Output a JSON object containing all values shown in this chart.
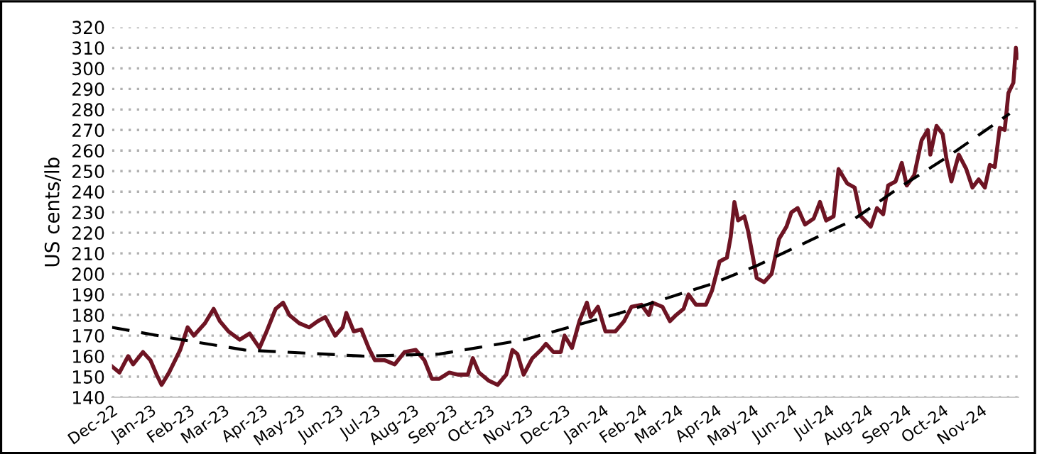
{
  "chart_data": {
    "type": "line",
    "ylabel": "US cents/lb",
    "ylim": [
      140,
      320
    ],
    "yticks": [
      140,
      150,
      160,
      170,
      180,
      190,
      200,
      210,
      220,
      230,
      240,
      250,
      260,
      270,
      280,
      290,
      300,
      310,
      320
    ],
    "xlim": [
      "2022-12-01",
      "2024-12-01"
    ],
    "xticks": [
      {
        "value": "2022-12-01",
        "label": "Dec-22"
      },
      {
        "value": "2023-01-01",
        "label": "Jan-23"
      },
      {
        "value": "2023-02-01",
        "label": "Feb-23"
      },
      {
        "value": "2023-03-01",
        "label": "Mar-23"
      },
      {
        "value": "2023-04-01",
        "label": "Apr-23"
      },
      {
        "value": "2023-05-01",
        "label": "May-23"
      },
      {
        "value": "2023-06-01",
        "label": "Jun-23"
      },
      {
        "value": "2023-07-01",
        "label": "Jul-23"
      },
      {
        "value": "2023-08-01",
        "label": "Aug-23"
      },
      {
        "value": "2023-09-01",
        "label": "Sep-23"
      },
      {
        "value": "2023-10-01",
        "label": "Oct-23"
      },
      {
        "value": "2023-11-01",
        "label": "Nov-23"
      },
      {
        "value": "2023-12-01",
        "label": "Dec-23"
      },
      {
        "value": "2024-01-01",
        "label": "Jan-24"
      },
      {
        "value": "2024-02-01",
        "label": "Feb-24"
      },
      {
        "value": "2024-03-01",
        "label": "Mar-24"
      },
      {
        "value": "2024-04-01",
        "label": "Apr-24"
      },
      {
        "value": "2024-05-01",
        "label": "May-24"
      },
      {
        "value": "2024-06-01",
        "label": "Jun-24"
      },
      {
        "value": "2024-07-01",
        "label": "Jul-24"
      },
      {
        "value": "2024-08-01",
        "label": "Aug-24"
      },
      {
        "value": "2024-09-01",
        "label": "Sep-24"
      },
      {
        "value": "2024-10-01",
        "label": "Oct-24"
      },
      {
        "value": "2024-11-01",
        "label": "Nov-24"
      }
    ],
    "grid": "y",
    "series": [
      {
        "color": "#6e1423",
        "line_style": "solid",
        "x": [
          "2022-12-01",
          "2022-12-07",
          "2022-12-14",
          "2022-12-18",
          "2022-12-26",
          "2023-01-01",
          "2023-01-06",
          "2023-01-10",
          "2023-01-16",
          "2023-01-25",
          "2023-01-31",
          "2023-02-05",
          "2023-02-14",
          "2023-02-21",
          "2023-02-26",
          "2023-03-05",
          "2023-03-14",
          "2023-03-22",
          "2023-03-30",
          "2023-04-04",
          "2023-04-12",
          "2023-04-18",
          "2023-04-23",
          "2023-05-01",
          "2023-05-09",
          "2023-05-16",
          "2023-05-22",
          "2023-05-30",
          "2023-06-05",
          "2023-06-08",
          "2023-06-14",
          "2023-06-20",
          "2023-06-26",
          "2023-07-01",
          "2023-07-09",
          "2023-07-17",
          "2023-07-25",
          "2023-08-03",
          "2023-08-10",
          "2023-08-16",
          "2023-08-22",
          "2023-08-30",
          "2023-09-06",
          "2023-09-14",
          "2023-09-18",
          "2023-09-23",
          "2023-10-01",
          "2023-10-08",
          "2023-10-15",
          "2023-10-20",
          "2023-10-24",
          "2023-10-29",
          "2023-11-05",
          "2023-11-12",
          "2023-11-16",
          "2023-11-22",
          "2023-11-28",
          "2023-12-01",
          "2023-12-07",
          "2023-12-13",
          "2023-12-19",
          "2023-12-22",
          "2023-12-28",
          "2024-01-03",
          "2024-01-11",
          "2024-01-18",
          "2024-01-24",
          "2024-02-01",
          "2024-02-07",
          "2024-02-10",
          "2024-02-18",
          "2024-02-24",
          "2024-02-29",
          "2024-03-06",
          "2024-03-10",
          "2024-03-16",
          "2024-03-24",
          "2024-03-29",
          "2024-04-04",
          "2024-04-10",
          "2024-04-13",
          "2024-04-16",
          "2024-04-19",
          "2024-04-24",
          "2024-04-27",
          "2024-05-01",
          "2024-05-04",
          "2024-05-10",
          "2024-05-16",
          "2024-05-22",
          "2024-05-28",
          "2024-06-01",
          "2024-06-06",
          "2024-06-12",
          "2024-06-19",
          "2024-06-24",
          "2024-06-29",
          "2024-07-05",
          "2024-07-09",
          "2024-07-16",
          "2024-07-22",
          "2024-07-27",
          "2024-08-04",
          "2024-08-09",
          "2024-08-14",
          "2024-08-18",
          "2024-08-24",
          "2024-08-29",
          "2024-09-02",
          "2024-09-08",
          "2024-09-14",
          "2024-09-19",
          "2024-09-21",
          "2024-09-26",
          "2024-10-01",
          "2024-10-04",
          "2024-10-08",
          "2024-10-14",
          "2024-10-20",
          "2024-10-25",
          "2024-10-30",
          "2024-11-04",
          "2024-11-08",
          "2024-11-12",
          "2024-11-16",
          "2024-11-20",
          "2024-11-23",
          "2024-11-27",
          "2024-11-29",
          "2024-11-30"
        ],
        "values": [
          155,
          152,
          160,
          156,
          162,
          158,
          151,
          146,
          152,
          163,
          174,
          170,
          176,
          183,
          177,
          172,
          168,
          171,
          164,
          171,
          183,
          186,
          180,
          176,
          174,
          177,
          179,
          170,
          174,
          181,
          172,
          173,
          164,
          158,
          158,
          156,
          162,
          163,
          158,
          149,
          149,
          152,
          151,
          151,
          159,
          152,
          148,
          146,
          151,
          163,
          161,
          151,
          159,
          163,
          166,
          162,
          162,
          170,
          164,
          177,
          186,
          179,
          184,
          172,
          172,
          177,
          184,
          185,
          180,
          186,
          184,
          177,
          180,
          183,
          190,
          185,
          185,
          192,
          206,
          208,
          218,
          235,
          226,
          228,
          221,
          208,
          198,
          196,
          200,
          217,
          223,
          230,
          232,
          224,
          227,
          235,
          226,
          228,
          251,
          244,
          242,
          228,
          223,
          232,
          229,
          243,
          245,
          254,
          243,
          248,
          265,
          270,
          258,
          272,
          268,
          256,
          245,
          258,
          251,
          242,
          246,
          242,
          253,
          252,
          271,
          270,
          288,
          293,
          310,
          305
        ]
      },
      {
        "color": "#000000",
        "line_style": "dashed",
        "x": [
          "2022-12-01",
          "2023-01-16",
          "2023-03-18",
          "2023-06-22",
          "2023-08-22",
          "2023-10-30",
          "2024-01-15",
          "2024-03-28",
          "2024-05-04",
          "2024-07-20",
          "2024-08-27",
          "2024-10-05",
          "2024-11-24"
        ],
        "values": [
          174,
          169,
          163,
          160,
          161,
          168,
          181,
          195,
          204,
          226,
          242,
          257,
          278
        ]
      }
    ]
  }
}
